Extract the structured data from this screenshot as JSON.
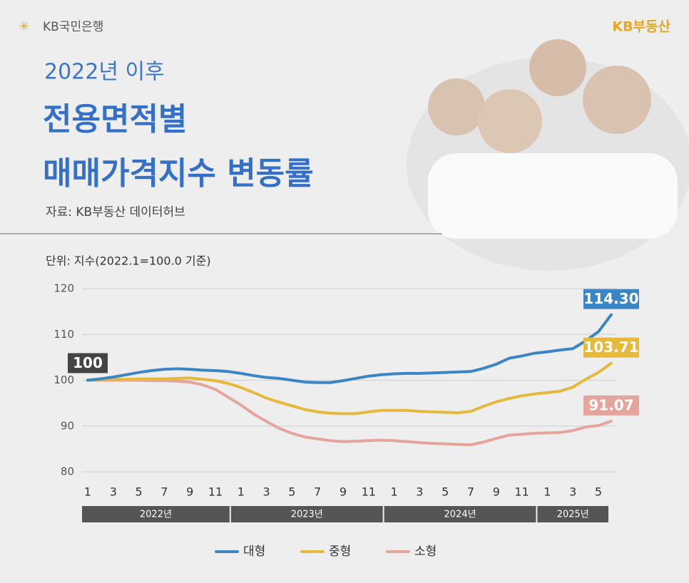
{
  "header": {
    "bank_logo": "KB국민은행",
    "brand": "KB부동산",
    "title_line1": "2022년 이후",
    "title_line2": "전용면적별",
    "title_line3": "매매가격지수 변동률",
    "source": "자료: KB부동산 데이터허브"
  },
  "chart_data": {
    "type": "line",
    "subtitle": "단위: 지수(2022.1=100.0 기준)",
    "categories": [
      "1",
      null,
      "3",
      null,
      "5",
      null,
      "7",
      null,
      "9",
      null,
      "11",
      null,
      "1",
      null,
      "3",
      null,
      "5",
      null,
      "7",
      null,
      "9",
      null,
      "11",
      null,
      "1",
      null,
      "3",
      null,
      "5",
      null,
      "7",
      null,
      "9",
      null,
      "11",
      null,
      "1",
      null,
      "3",
      null,
      "5",
      null
    ],
    "year_groups": [
      "2022년",
      "2023년",
      "2024년",
      "2025년"
    ],
    "ylim": [
      80,
      120
    ],
    "yticks": [
      80,
      90,
      100,
      110,
      120
    ],
    "grid": true,
    "legend": "bottom",
    "series": [
      {
        "name": "대형",
        "color": "#3a86c4",
        "values": [
          100,
          100.3,
          100.7,
          101.2,
          101.7,
          102.1,
          102.4,
          102.5,
          102.4,
          102.2,
          102.1,
          101.9,
          101.5,
          101.0,
          100.6,
          100.4,
          100.0,
          99.6,
          99.5,
          99.5,
          99.9,
          100.4,
          100.9,
          101.2,
          101.4,
          101.5,
          101.5,
          101.6,
          101.7,
          101.8,
          101.9,
          102.6,
          103.5,
          104.8,
          105.3,
          105.9,
          106.2,
          106.6,
          106.9,
          108.6,
          110.6,
          114.3
        ],
        "value_labels": [
          "100",
          null,
          null,
          null,
          null,
          null,
          null,
          null,
          null,
          null,
          null,
          null,
          null,
          null,
          null,
          null,
          null,
          null,
          null,
          null,
          null,
          null,
          null,
          null,
          null,
          null,
          null,
          null,
          null,
          null,
          null,
          null,
          null,
          null,
          null,
          null,
          null,
          null,
          null,
          null,
          null,
          "114.30"
        ]
      },
      {
        "name": "중형",
        "color": "#e5b93b",
        "values": [
          100,
          100.1,
          100.2,
          100.2,
          100.3,
          100.3,
          100.3,
          100.4,
          100.5,
          100.2,
          99.9,
          99.3,
          98.4,
          97.3,
          96.1,
          95.2,
          94.4,
          93.6,
          93.1,
          92.8,
          92.7,
          92.7,
          93.1,
          93.4,
          93.4,
          93.4,
          93.2,
          93.1,
          93.0,
          92.9,
          93.2,
          94.3,
          95.3,
          96.0,
          96.6,
          97.0,
          97.3,
          97.6,
          98.5,
          100.2,
          101.7,
          103.71
        ],
        "value_labels": [
          null,
          null,
          null,
          null,
          null,
          null,
          null,
          null,
          null,
          null,
          null,
          null,
          null,
          null,
          null,
          null,
          null,
          null,
          null,
          null,
          null,
          null,
          null,
          null,
          null,
          null,
          null,
          null,
          null,
          null,
          null,
          null,
          null,
          null,
          null,
          null,
          null,
          null,
          null,
          null,
          null,
          "103.71"
        ]
      },
      {
        "name": "소형",
        "color": "#e6a59c",
        "values": [
          100,
          100,
          100,
          100,
          100,
          99.9,
          99.9,
          99.8,
          99.6,
          99.0,
          98.0,
          96.3,
          94.6,
          92.6,
          91.0,
          89.5,
          88.4,
          87.6,
          87.2,
          86.8,
          86.6,
          86.7,
          86.8,
          86.9,
          86.8,
          86.6,
          86.4,
          86.2,
          86.1,
          86.0,
          85.9,
          86.5,
          87.3,
          88.0,
          88.2,
          88.4,
          88.5,
          88.6,
          89.0,
          89.8,
          90.1,
          91.07
        ],
        "value_labels": [
          null,
          null,
          null,
          null,
          null,
          null,
          null,
          null,
          null,
          null,
          null,
          null,
          null,
          null,
          null,
          null,
          null,
          null,
          null,
          null,
          null,
          null,
          null,
          null,
          null,
          null,
          null,
          null,
          null,
          null,
          null,
          null,
          null,
          null,
          null,
          null,
          null,
          null,
          null,
          null,
          null,
          "91.07"
        ]
      }
    ]
  }
}
